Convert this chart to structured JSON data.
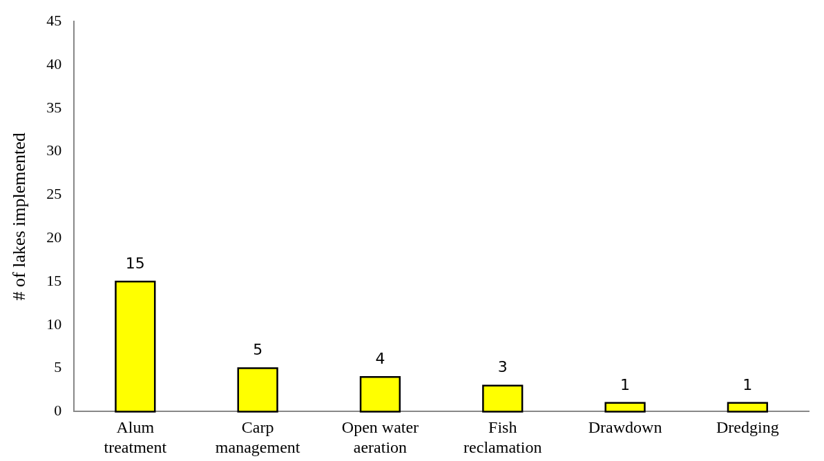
{
  "chart_data": {
    "type": "bar",
    "ylabel": "# of lakes implemented",
    "categories": [
      "Alum treatment",
      "Carp management",
      "Open water aeration",
      "Fish reclamation",
      "Drawdown",
      "Dredging"
    ],
    "values": [
      15,
      5,
      4,
      3,
      1,
      1
    ],
    "color": "#ffff00",
    "ylim": [
      0,
      45
    ],
    "yticks": [
      0,
      5,
      10,
      15,
      20,
      25,
      30,
      35,
      40,
      45
    ],
    "grid": false,
    "legend": false,
    "data_labels": true
  }
}
